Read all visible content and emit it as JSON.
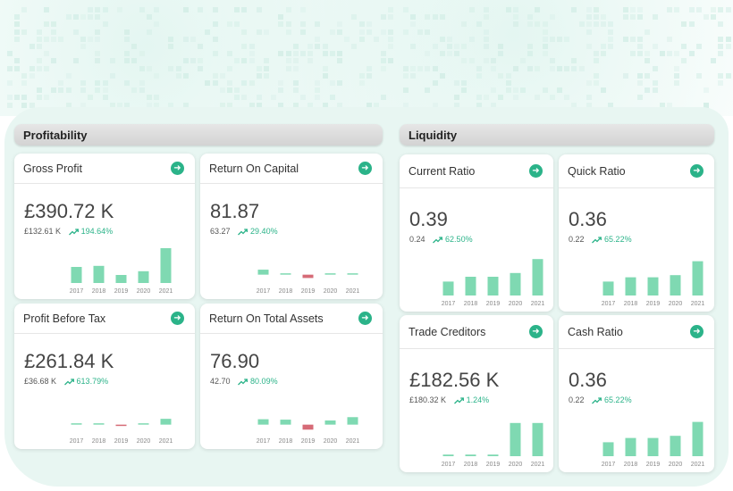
{
  "colors": {
    "accent": "#2bb389",
    "bar_positive": "#7fd9b2",
    "bar_negative": "#d66b77"
  },
  "years": [
    "2017",
    "2018",
    "2019",
    "2020",
    "2021"
  ],
  "profitability": {
    "title": "Profitability",
    "cards": [
      {
        "title": "Gross Profit",
        "value": "£390.72 K",
        "previous": "£132.61 K",
        "change": "194.64%",
        "bars": [
          3,
          3.2,
          1.5,
          2.2,
          6.5
        ],
        "range": [
          0,
          7
        ]
      },
      {
        "title": "Return On Capital",
        "value": "81.87",
        "previous": "63.27",
        "change": "29.40%",
        "bars": [
          1.2,
          0.3,
          -0.8,
          0.2,
          0.3
        ],
        "range": [
          -2,
          7
        ]
      },
      {
        "title": "Profit Before Tax",
        "value": "£261.84 K",
        "previous": "£36.68 K",
        "change": "613.79%",
        "bars": [
          0.2,
          0.2,
          -0.2,
          0.2,
          1.4
        ],
        "range": [
          -2,
          7
        ]
      },
      {
        "title": "Return On Total Assets",
        "value": "76.90",
        "previous": "42.70",
        "change": "80.09%",
        "bars": [
          1.3,
          1.2,
          -1.2,
          1,
          1.8
        ],
        "range": [
          -2,
          7
        ]
      }
    ]
  },
  "liquidity": {
    "title": "Liquidity",
    "cards": [
      {
        "title": "Current Ratio",
        "value": "0.39",
        "previous": "0.24",
        "change": "62.50%",
        "bars": [
          2.6,
          3.5,
          3.5,
          4.2,
          6.8
        ],
        "range": [
          0,
          7
        ]
      },
      {
        "title": "Quick Ratio",
        "value": "0.36",
        "previous": "0.22",
        "change": "65.22%",
        "bars": [
          2.6,
          3.4,
          3.4,
          3.8,
          6.4
        ],
        "range": [
          0,
          7
        ]
      },
      {
        "title": "Trade Creditors",
        "value": "£182.56 K",
        "previous": "£180.32 K",
        "change": "1.24%",
        "bars": [
          0.3,
          0.3,
          0.3,
          6.2,
          6.2
        ],
        "range": [
          0,
          7
        ]
      },
      {
        "title": "Cash Ratio",
        "value": "0.36",
        "previous": "0.22",
        "change": "65.22%",
        "bars": [
          2.6,
          3.4,
          3.4,
          3.8,
          6.4
        ],
        "range": [
          0,
          7
        ]
      }
    ]
  }
}
